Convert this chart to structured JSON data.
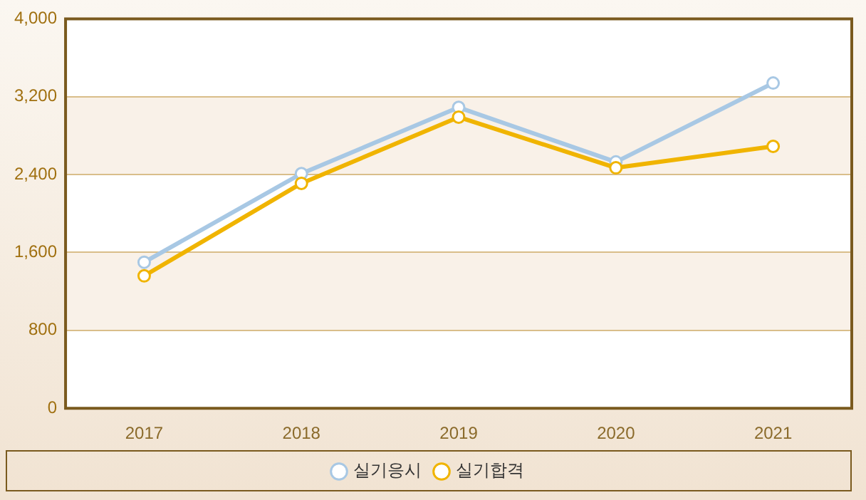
{
  "chart_data": {
    "type": "line",
    "categories": [
      "2017",
      "2018",
      "2019",
      "2020",
      "2021"
    ],
    "series": [
      {
        "name": "실기응시",
        "color": "#a8c8e4",
        "values": [
          1500,
          2410,
          3090,
          2530,
          3340
        ]
      },
      {
        "name": "실기합격",
        "color": "#f0b400",
        "values": [
          1360,
          2310,
          2990,
          2470,
          2690
        ]
      }
    ],
    "ylim": [
      0,
      4000
    ],
    "yticks": [
      0,
      {
        "value": 800,
        "label": "800"
      },
      {
        "value": 1600,
        "label": "1,600"
      },
      {
        "value": 2400,
        "label": "2,400"
      },
      {
        "value": 3200,
        "label": "3,200"
      },
      {
        "value": 4000,
        "label": "4,000"
      }
    ],
    "grid": "y",
    "legend": "bottom",
    "marker": "circle",
    "line_style": "solid"
  }
}
